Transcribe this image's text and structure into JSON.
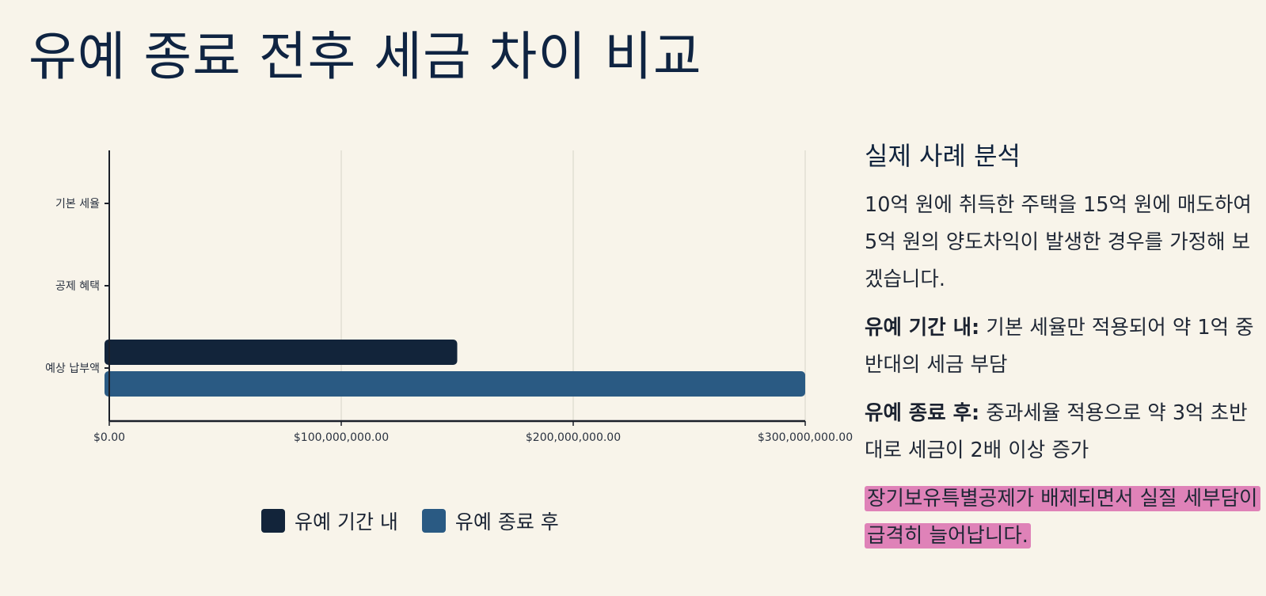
{
  "title": "유예 종료 전후 세금 차이 비교",
  "colors": {
    "background": "#f8f4ea",
    "series_within": "#12243a",
    "series_after": "#2a5a83",
    "highlight": "#df82b8",
    "grid": "#d6d3c8",
    "axis": "#1a1f29"
  },
  "chart_data": {
    "type": "bar",
    "orientation": "horizontal",
    "categories": [
      "기본 세율",
      "공제 혜택",
      "예상 납부액"
    ],
    "series": [
      {
        "name": "유예 기간 내",
        "values": [
          0,
          0,
          150000000
        ]
      },
      {
        "name": "유예 종료 후",
        "values": [
          0,
          0,
          300000000
        ]
      }
    ],
    "xlim": [
      0,
      300000000
    ],
    "x_ticks": [
      0,
      100000000,
      200000000,
      300000000
    ],
    "x_tick_labels": [
      "$0.00",
      "$100,000,000.00",
      "$200,000,000.00",
      "$300,000,000.00"
    ],
    "grid": true,
    "legend_position": "bottom",
    "xlabel": "",
    "ylabel": ""
  },
  "legend": {
    "items": [
      {
        "label": "유예 기간 내",
        "color": "#12243a"
      },
      {
        "label": "유예 종료 후",
        "color": "#2a5a83"
      }
    ]
  },
  "side": {
    "title": "실제 사례 분석",
    "intro": "10억 원에 취득한 주택을 15억 원에 매도하여 5억 원의 양도차익이 발생한 경우를 가정해 보겠습니다.",
    "within_label": "유예 기간 내:",
    "within_text": " 기본 세율만 적용되어 약 1억 중반대의 세금 부담",
    "after_label": "유예 종료 후:",
    "after_text": " 중과세율 적용으로 약 3억 초반대로 세금이 2배 이상 증가",
    "highlight": "장기보유특별공제가 배제되면서 실질 세부담이 급격히 늘어납니다."
  }
}
